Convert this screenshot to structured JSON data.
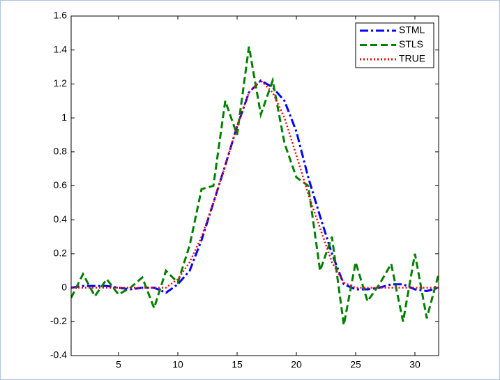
{
  "chart_data": {
    "type": "line",
    "x": [
      1,
      2,
      3,
      4,
      5,
      6,
      7,
      8,
      9,
      10,
      11,
      12,
      13,
      14,
      15,
      16,
      17,
      18,
      19,
      20,
      21,
      22,
      23,
      24,
      25,
      26,
      27,
      28,
      29,
      30,
      31,
      32
    ],
    "series": [
      {
        "name": "STML",
        "color": "#0000ff",
        "linestyle": "dashdot",
        "values": [
          0,
          0.01,
          0.01,
          0.01,
          0,
          -0.01,
          0,
          0,
          -0.03,
          0.02,
          0.1,
          0.28,
          0.5,
          0.72,
          0.95,
          1.15,
          1.22,
          1.18,
          1.1,
          0.92,
          0.65,
          0.42,
          0.2,
          0.02,
          -0.01,
          -0.01,
          0,
          0.02,
          0.02,
          -0.01,
          -0.02,
          0
        ]
      },
      {
        "name": "STLS",
        "color": "#007f00",
        "linestyle": "dashed",
        "values": [
          -0.06,
          0.08,
          -0.05,
          0.05,
          -0.04,
          0,
          0.06,
          -0.12,
          0.1,
          0.03,
          0.25,
          0.58,
          0.6,
          1.1,
          0.9,
          1.42,
          1.02,
          1.22,
          0.85,
          0.65,
          0.6,
          0.1,
          0.3,
          -0.22,
          0.15,
          -0.08,
          0.02,
          0.14,
          -0.2,
          0.2,
          -0.18,
          0.08
        ]
      },
      {
        "name": "TRUE",
        "color": "#ff0000",
        "linestyle": "dotted",
        "values": [
          0,
          0,
          0,
          0,
          0,
          0,
          0,
          0,
          0,
          0.05,
          0.15,
          0.3,
          0.5,
          0.72,
          0.95,
          1.15,
          1.22,
          1.15,
          1,
          0.78,
          0.55,
          0.35,
          0.15,
          0.03,
          0,
          0,
          0,
          0,
          0,
          0,
          0,
          0
        ]
      }
    ],
    "xlim": [
      1,
      32
    ],
    "xticks": [
      5,
      10,
      15,
      20,
      25,
      30
    ],
    "ylim": [
      -0.4,
      1.6
    ],
    "yticks": [
      -0.4,
      -0.2,
      0,
      0.2,
      0.4,
      0.6,
      0.8,
      1,
      1.2,
      1.4,
      1.6
    ],
    "legend": "top-right"
  }
}
